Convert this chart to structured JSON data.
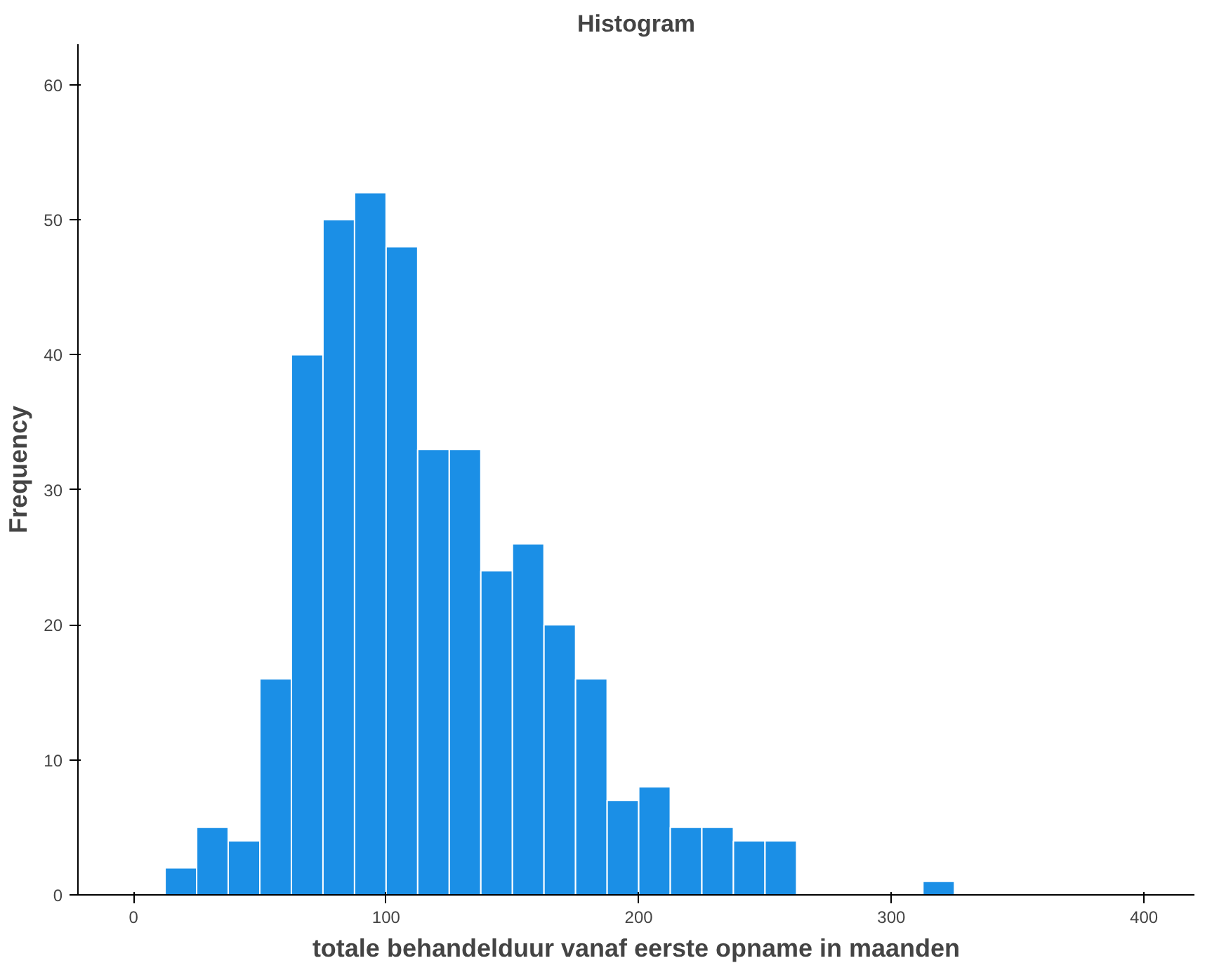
{
  "chart_data": {
    "type": "histogram",
    "title": "Histogram",
    "xlabel": "totale behandelduur vanaf eerste opname in maanden",
    "ylabel": "Frequency",
    "bins": [
      12.5,
      25,
      37.5,
      50,
      62.5,
      75,
      87.5,
      100,
      112.5,
      125,
      137.5,
      150,
      162.5,
      175,
      187.5,
      200,
      212.5,
      225,
      237.5,
      250,
      262.5,
      275,
      287.5,
      300,
      312.5,
      325
    ],
    "values": [
      2,
      5,
      4,
      16,
      40,
      50,
      52,
      48,
      33,
      33,
      24,
      26,
      20,
      16,
      7,
      8,
      5,
      5,
      4,
      4,
      0,
      0,
      0,
      0,
      1
    ],
    "color": "#1b8fe6",
    "xlim": [
      -22,
      420
    ],
    "ylim": [
      0,
      63
    ],
    "xticks": [
      0,
      100,
      200,
      300,
      400
    ],
    "yticks": [
      0,
      10,
      20,
      30,
      40,
      50,
      60
    ],
    "grid": false
  }
}
